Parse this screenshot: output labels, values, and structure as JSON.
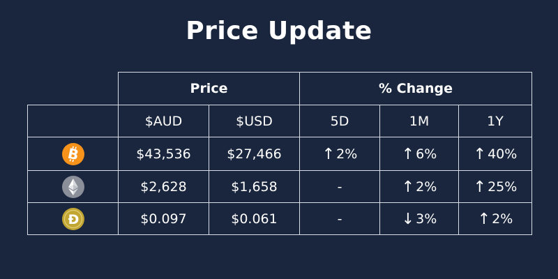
{
  "title": "Price Update",
  "header": {
    "price_group": "Price",
    "change_group": "% Change",
    "columns": [
      "$AUD",
      "$USD",
      "5D",
      "1M",
      "1Y"
    ]
  },
  "colors": {
    "background": "#1a263d",
    "up": "#22e33a",
    "down": "#ff3b3b",
    "bitcoin": "#f7931a",
    "ethereum": "#8a8f9a",
    "dogecoin": "#c2a633"
  },
  "rows": [
    {
      "coin_icon": "bitcoin-icon",
      "aud": "$43,536",
      "usd": "$27,466",
      "d5": {
        "dir": "up",
        "text": "2%"
      },
      "m1": {
        "dir": "up",
        "text": "6%"
      },
      "y1": {
        "dir": "up",
        "text": "40%"
      }
    },
    {
      "coin_icon": "ethereum-icon",
      "aud": "$2,628",
      "usd": "$1,658",
      "d5": {
        "dir": "none",
        "text": "-"
      },
      "m1": {
        "dir": "up",
        "text": "2%"
      },
      "y1": {
        "dir": "up",
        "text": "25%"
      }
    },
    {
      "coin_icon": "dogecoin-icon",
      "aud": "$0.097",
      "usd": "$0.061",
      "d5": {
        "dir": "none",
        "text": "-"
      },
      "m1": {
        "dir": "down",
        "text": "3%"
      },
      "y1": {
        "dir": "up",
        "text": "2%"
      }
    }
  ],
  "arrows": {
    "up": "↑",
    "down": "↓"
  }
}
